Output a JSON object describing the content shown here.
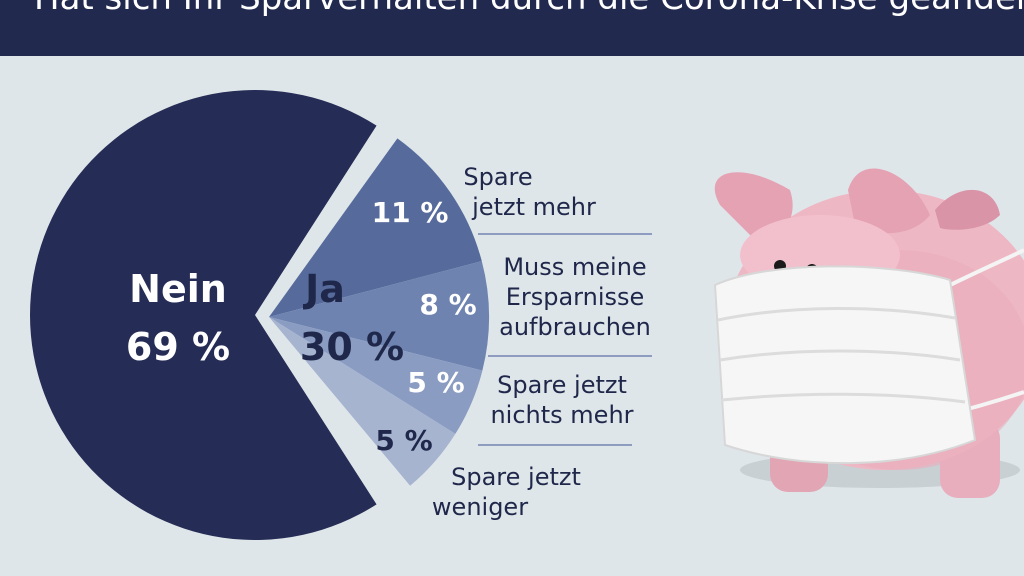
{
  "header": {
    "title": "Hat sich Ihr Sparverhalten durch die Corona-Krise geändert?"
  },
  "colors": {
    "background": "#dfe6ea",
    "header": "#22294e",
    "nein": "#252c55",
    "ja_1": "#566b9c",
    "ja_2": "#6e83b0",
    "ja_3": "#8a9cc2",
    "ja_4": "#a6b4d0",
    "divider": "#8e9cbf",
    "dark_text": "#1f274a"
  },
  "illustration": {
    "subject": "piggy-bank-with-face-mask"
  },
  "chart_data": {
    "type": "pie",
    "title": "Hat sich Ihr Sparverhalten durch die Corona-Krise geändert?",
    "slices": [
      {
        "name": "Nein",
        "value": 69,
        "label": "69 %"
      },
      {
        "name": "Ja",
        "value": 30,
        "label": "30 %",
        "breakdown": [
          {
            "name": "Spare jetzt mehr",
            "value": 11,
            "label": "11 %"
          },
          {
            "name": "Muss meine Ersparnisse aufbrauchen",
            "value": 8,
            "label": "8 %"
          },
          {
            "name": "Spare jetzt nichts mehr",
            "value": 5,
            "label": "5 %"
          },
          {
            "name": "Spare jetzt weniger",
            "value": 5,
            "label": "5 %"
          }
        ]
      }
    ],
    "labels": {
      "nein_name": "Nein",
      "nein_pct": "69 %",
      "ja_name": "Ja",
      "ja_pct": "30 %",
      "breakdown_lines": [
        [
          "Spare",
          "jetzt mehr"
        ],
        [
          "Muss meine",
          "Ersparnisse",
          "aufbrauchen"
        ],
        [
          "Spare jetzt",
          "nichts mehr"
        ],
        [
          "Spare jetzt",
          "weniger"
        ]
      ]
    }
  }
}
